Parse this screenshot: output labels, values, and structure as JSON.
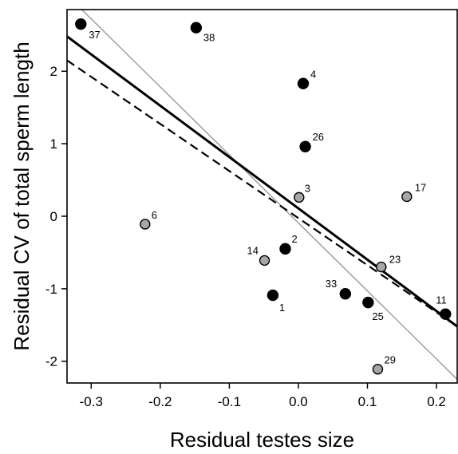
{
  "chart_data": {
    "type": "scatter",
    "xlabel": "Residual testes size",
    "ylabel": "Residual CV of total sperm length",
    "xlim": [
      -0.335,
      0.23
    ],
    "ylim": [
      -2.3,
      2.85
    ],
    "xticks": [
      -0.3,
      -0.2,
      -0.1,
      0.0,
      0.1,
      0.2
    ],
    "xtick_labels": [
      "-0.3",
      "-0.2",
      "-0.1",
      "0.0",
      "0.1",
      "0.2"
    ],
    "yticks": [
      -2,
      -1,
      0,
      1,
      2
    ],
    "ytick_labels": [
      "-2",
      "-1",
      "0",
      "1",
      "2"
    ],
    "grid": false,
    "colors": {
      "black_points": "#000000",
      "grey_points": "#a6a6a6",
      "grey_line": "#999999"
    },
    "points": [
      {
        "label": "37",
        "x": -0.315,
        "y": 2.65,
        "fill": "black"
      },
      {
        "label": "38",
        "x": -0.148,
        "y": 2.6,
        "fill": "black"
      },
      {
        "label": "4",
        "x": 0.007,
        "y": 1.83,
        "fill": "black"
      },
      {
        "label": "26",
        "x": 0.01,
        "y": 0.96,
        "fill": "black"
      },
      {
        "label": "3",
        "x": 0.001,
        "y": 0.26,
        "fill": "grey"
      },
      {
        "label": "17",
        "x": 0.157,
        "y": 0.27,
        "fill": "grey"
      },
      {
        "label": "6",
        "x": -0.222,
        "y": -0.11,
        "fill": "grey"
      },
      {
        "label": "2",
        "x": -0.019,
        "y": -0.45,
        "fill": "black"
      },
      {
        "label": "14",
        "x": -0.049,
        "y": -0.61,
        "fill": "grey"
      },
      {
        "label": "23",
        "x": 0.12,
        "y": -0.7,
        "fill": "grey"
      },
      {
        "label": "33",
        "x": 0.068,
        "y": -1.07,
        "fill": "black"
      },
      {
        "label": "1",
        "x": -0.037,
        "y": -1.09,
        "fill": "black"
      },
      {
        "label": "25",
        "x": 0.101,
        "y": -1.19,
        "fill": "black"
      },
      {
        "label": "11",
        "x": 0.213,
        "y": -1.35,
        "fill": "black"
      },
      {
        "label": "29",
        "x": 0.115,
        "y": -2.11,
        "fill": "grey"
      }
    ],
    "lines": [
      {
        "style": "solid-thick",
        "x": [
          -0.335,
          0.23
        ],
        "y": [
          2.48,
          -1.52
        ]
      },
      {
        "style": "dashed",
        "x": [
          -0.335,
          0.23
        ],
        "y": [
          2.15,
          -1.52
        ]
      },
      {
        "style": "solid-thin-grey",
        "x": [
          -0.335,
          0.23
        ],
        "y": [
          3.05,
          -2.25
        ]
      }
    ]
  }
}
